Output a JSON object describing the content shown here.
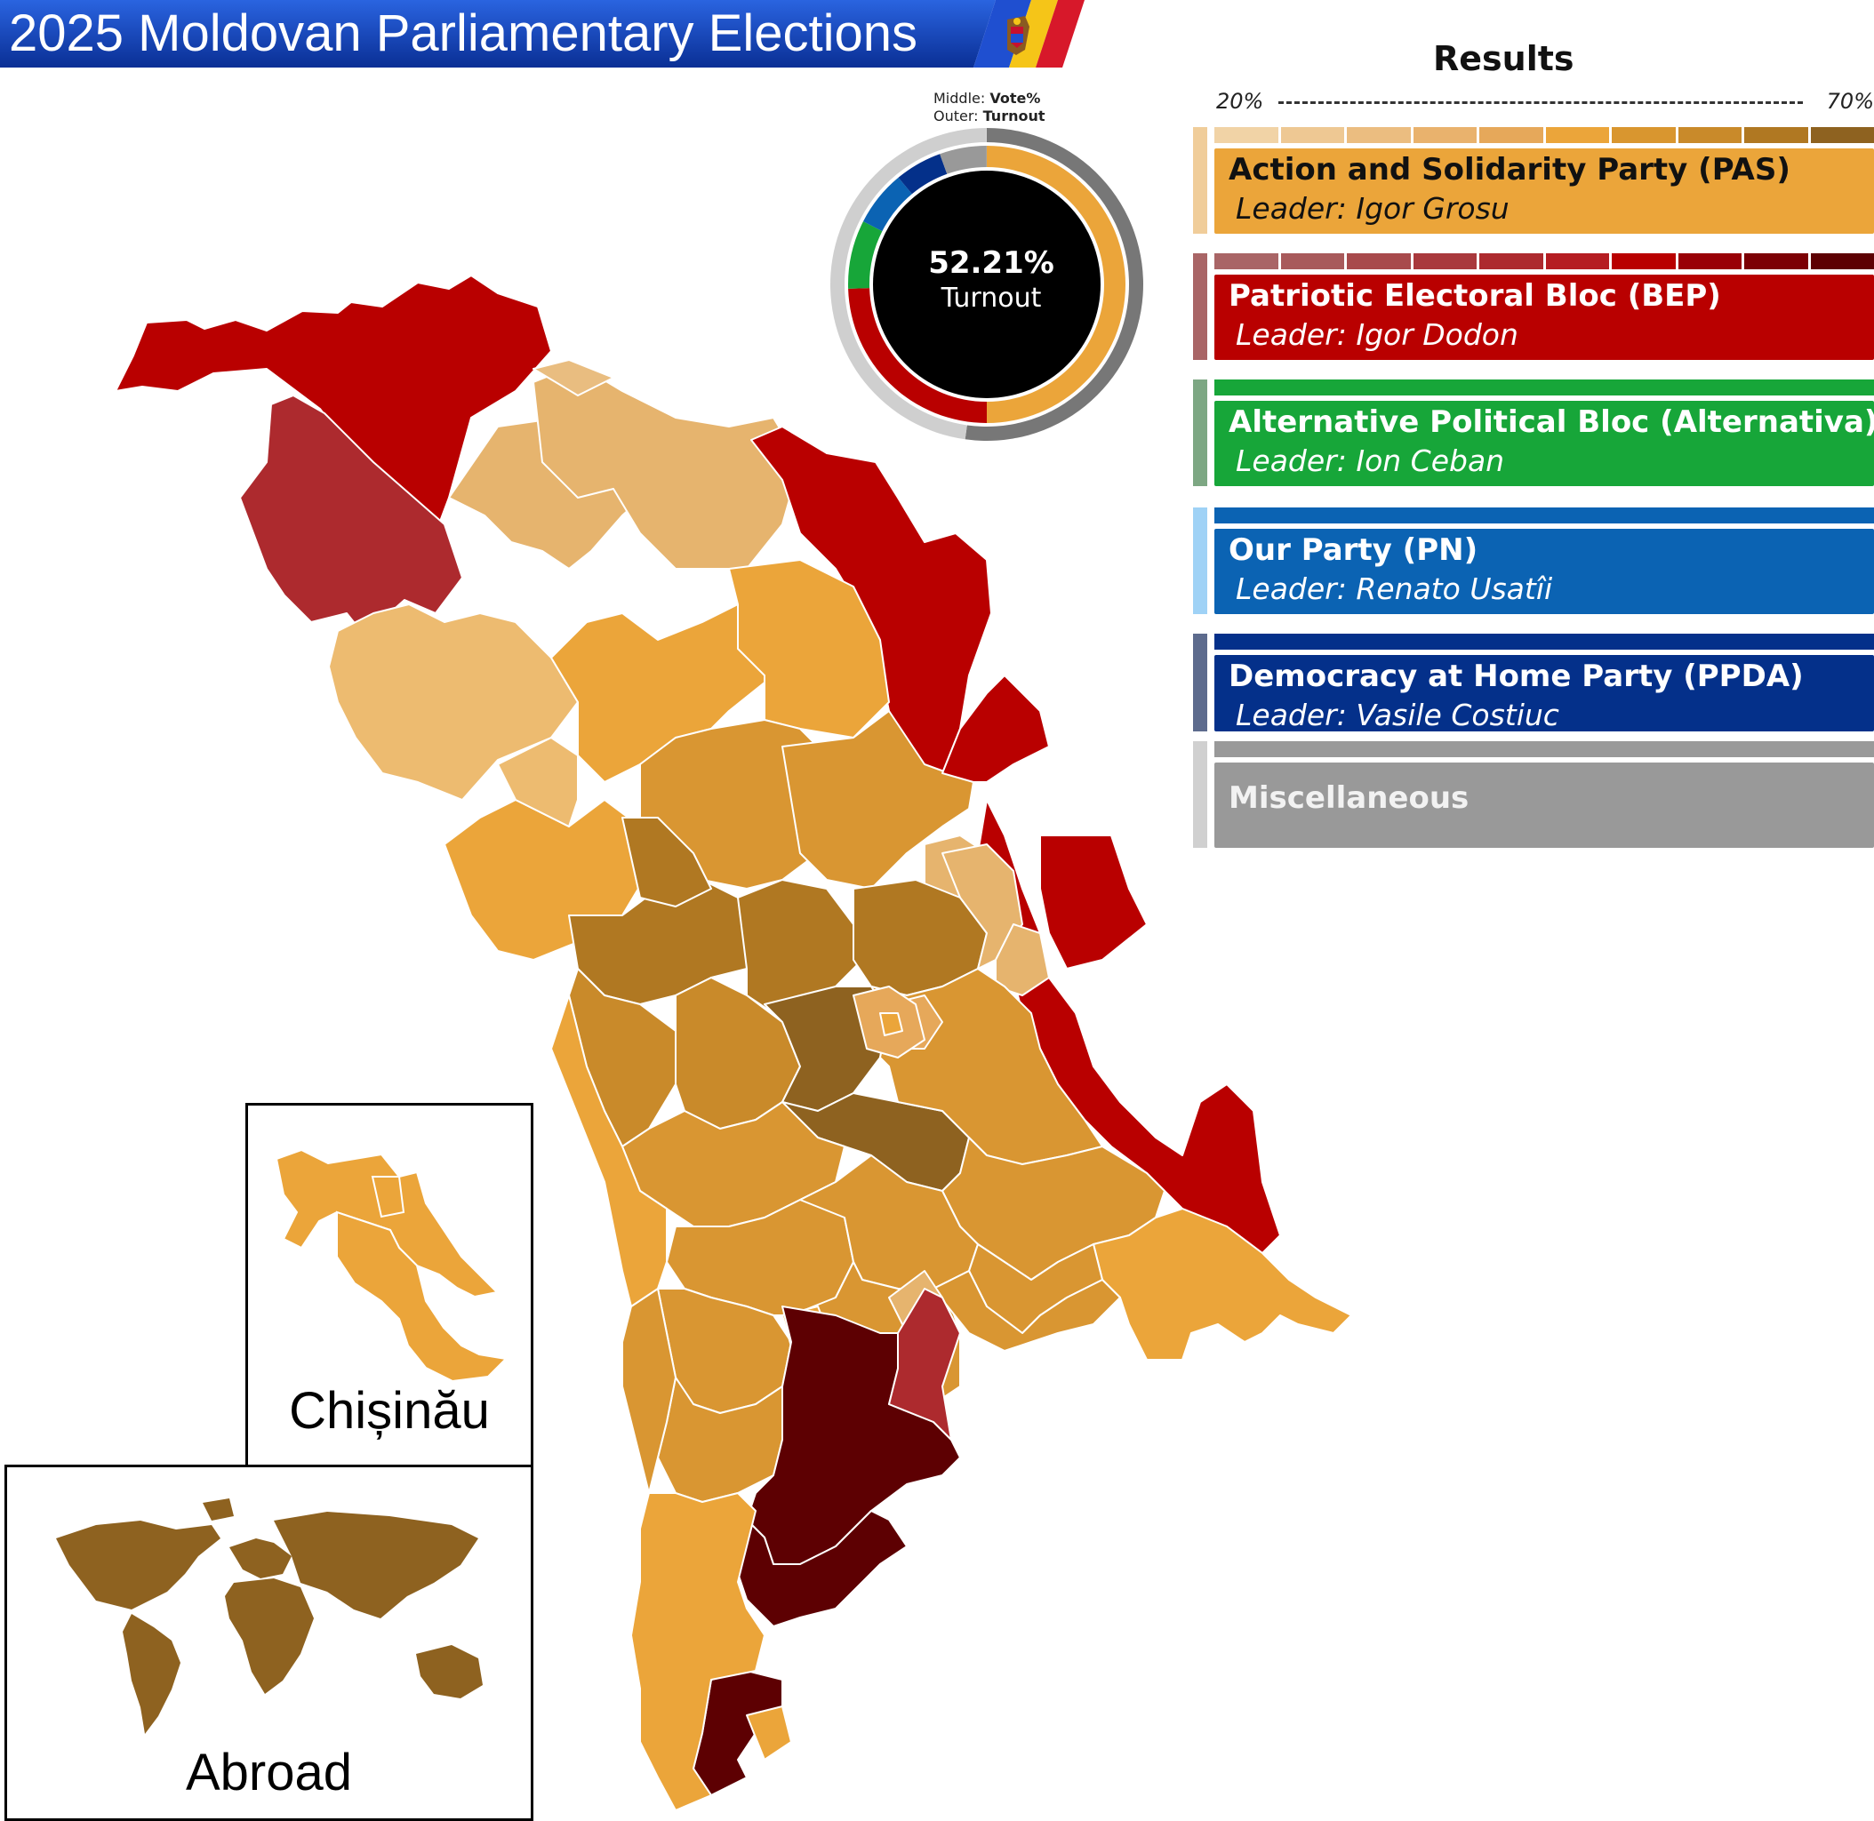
{
  "title": "2025 Moldovan Parliamentary Elections",
  "colors": {
    "banner": "#0d3fb3",
    "pas_scale": [
      "#f1d3a6",
      "#eec893",
      "#ebbd80",
      "#e9b26d",
      "#e6a85a",
      "#eba53a",
      "#d9962f",
      "#c98a2a",
      "#b07822",
      "#8e6220"
    ],
    "bep_scale": [
      "#a96566",
      "#a85a5b",
      "#a84a4c",
      "#a9393d",
      "#ad2a2e",
      "#b51d22",
      "#b90000",
      "#990007",
      "#7c0004",
      "#5d0002"
    ]
  },
  "donut": {
    "legend_middle_label": "Middle:",
    "legend_middle_value": "Vote%",
    "legend_outer_label": "Outer:",
    "legend_outer_value": "Turnout",
    "center_value": "52.21%",
    "center_label": "Turnout",
    "outer_turnout_fraction": 0.5221,
    "vote_share_approx": [
      {
        "party": "PAS",
        "fraction": 0.5,
        "color": "#eba53a"
      },
      {
        "party": "BEP",
        "fraction": 0.245,
        "color": "#b90000"
      },
      {
        "party": "Alternativa",
        "fraction": 0.08,
        "color": "#17a639"
      },
      {
        "party": "PN",
        "fraction": 0.065,
        "color": "#0b63b3"
      },
      {
        "party": "PPDA",
        "fraction": 0.055,
        "color": "#04308a"
      },
      {
        "party": "Misc",
        "fraction": 0.055,
        "color": "#999999"
      }
    ]
  },
  "results": {
    "title": "Results",
    "scale_min": "20%",
    "scale_max": "70%",
    "parties": [
      {
        "name": "Action and Solidarity Party (PAS)",
        "leader": "Leader: Igor Grosu",
        "color": "#eba53a",
        "text_color": "#111111",
        "side": "#f0cd9a"
      },
      {
        "name": "Patriotic Electoral Bloc (BEP)",
        "leader": "Leader: Igor Dodon",
        "color": "#b90000",
        "text_color": "#ffffff",
        "side": "#a96566"
      },
      {
        "name": "Alternative Political Bloc (Alternativa)",
        "leader": "Leader: Ion Ceban",
        "color": "#17a639",
        "text_color": "#ffffff",
        "side": "#7da783"
      },
      {
        "name": "Our Party (PN)",
        "leader": "Leader: Renato Usatîi",
        "color": "#0b63b3",
        "text_color": "#ffffff",
        "side": "#9fd2f6"
      },
      {
        "name": "Democracy at Home Party (PPDA)",
        "leader": "Leader: Vasile Costiuc",
        "color": "#04308a",
        "text_color": "#ffffff",
        "side": "#5d6b8d"
      },
      {
        "name": "Miscellaneous",
        "leader": "",
        "color": "#999999",
        "text_color": "#f2f2f2",
        "side": "#d0d0d0"
      }
    ]
  },
  "insets": {
    "chisinau_label": "Chișinău",
    "abroad_label": "Abroad"
  }
}
